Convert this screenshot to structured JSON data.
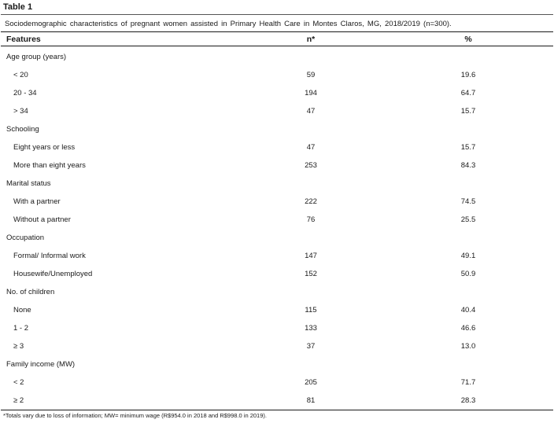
{
  "table_label": "Table 1",
  "caption": "Sociodemographic characteristics of pregnant women assisted in Primary Health Care in Montes Claros, MG, 2018/2019 (n=300).",
  "headers": {
    "features": "Features",
    "n": "n*",
    "percent": "%"
  },
  "rows": [
    {
      "type": "group",
      "label": "Age group (years)",
      "n": "",
      "pct": ""
    },
    {
      "type": "item",
      "label": "< 20",
      "n": "59",
      "pct": "19.6"
    },
    {
      "type": "item",
      "label": "20 - 34",
      "n": "194",
      "pct": "64.7"
    },
    {
      "type": "item",
      "label": "> 34",
      "n": "47",
      "pct": "15.7"
    },
    {
      "type": "group",
      "label": "Schooling",
      "n": "",
      "pct": ""
    },
    {
      "type": "item",
      "label": "Eight years or less",
      "n": "47",
      "pct": "15.7"
    },
    {
      "type": "item",
      "label": "More than eight years",
      "n": "253",
      "pct": "84.3"
    },
    {
      "type": "group",
      "label": "Marital status",
      "n": "",
      "pct": ""
    },
    {
      "type": "item",
      "label": "With a partner",
      "n": "222",
      "pct": "74.5"
    },
    {
      "type": "item",
      "label": "Without a partner",
      "n": "76",
      "pct": "25.5"
    },
    {
      "type": "group",
      "label": "Occupation",
      "n": "",
      "pct": ""
    },
    {
      "type": "item",
      "label": "Formal/ Informal work",
      "n": "147",
      "pct": "49.1"
    },
    {
      "type": "item",
      "label": "Housewife/Unemployed",
      "n": "152",
      "pct": "50.9"
    },
    {
      "type": "group",
      "label": "No. of children",
      "n": "",
      "pct": ""
    },
    {
      "type": "item",
      "label": "None",
      "n": "115",
      "pct": "40.4"
    },
    {
      "type": "item",
      "label": "1 - 2",
      "n": "133",
      "pct": "46.6"
    },
    {
      "type": "item",
      "label": "≥ 3",
      "n": "37",
      "pct": "13.0"
    },
    {
      "type": "group",
      "label": "Family income (MW)",
      "n": "",
      "pct": ""
    },
    {
      "type": "item",
      "label": "< 2",
      "n": "205",
      "pct": "71.7"
    },
    {
      "type": "item",
      "label": "≥ 2",
      "n": "81",
      "pct": "28.3"
    }
  ],
  "footnote": "*Totals vary due to loss of information; MW= minimum wage (R$954.0 in 2018 and R$998.0 in 2019)."
}
